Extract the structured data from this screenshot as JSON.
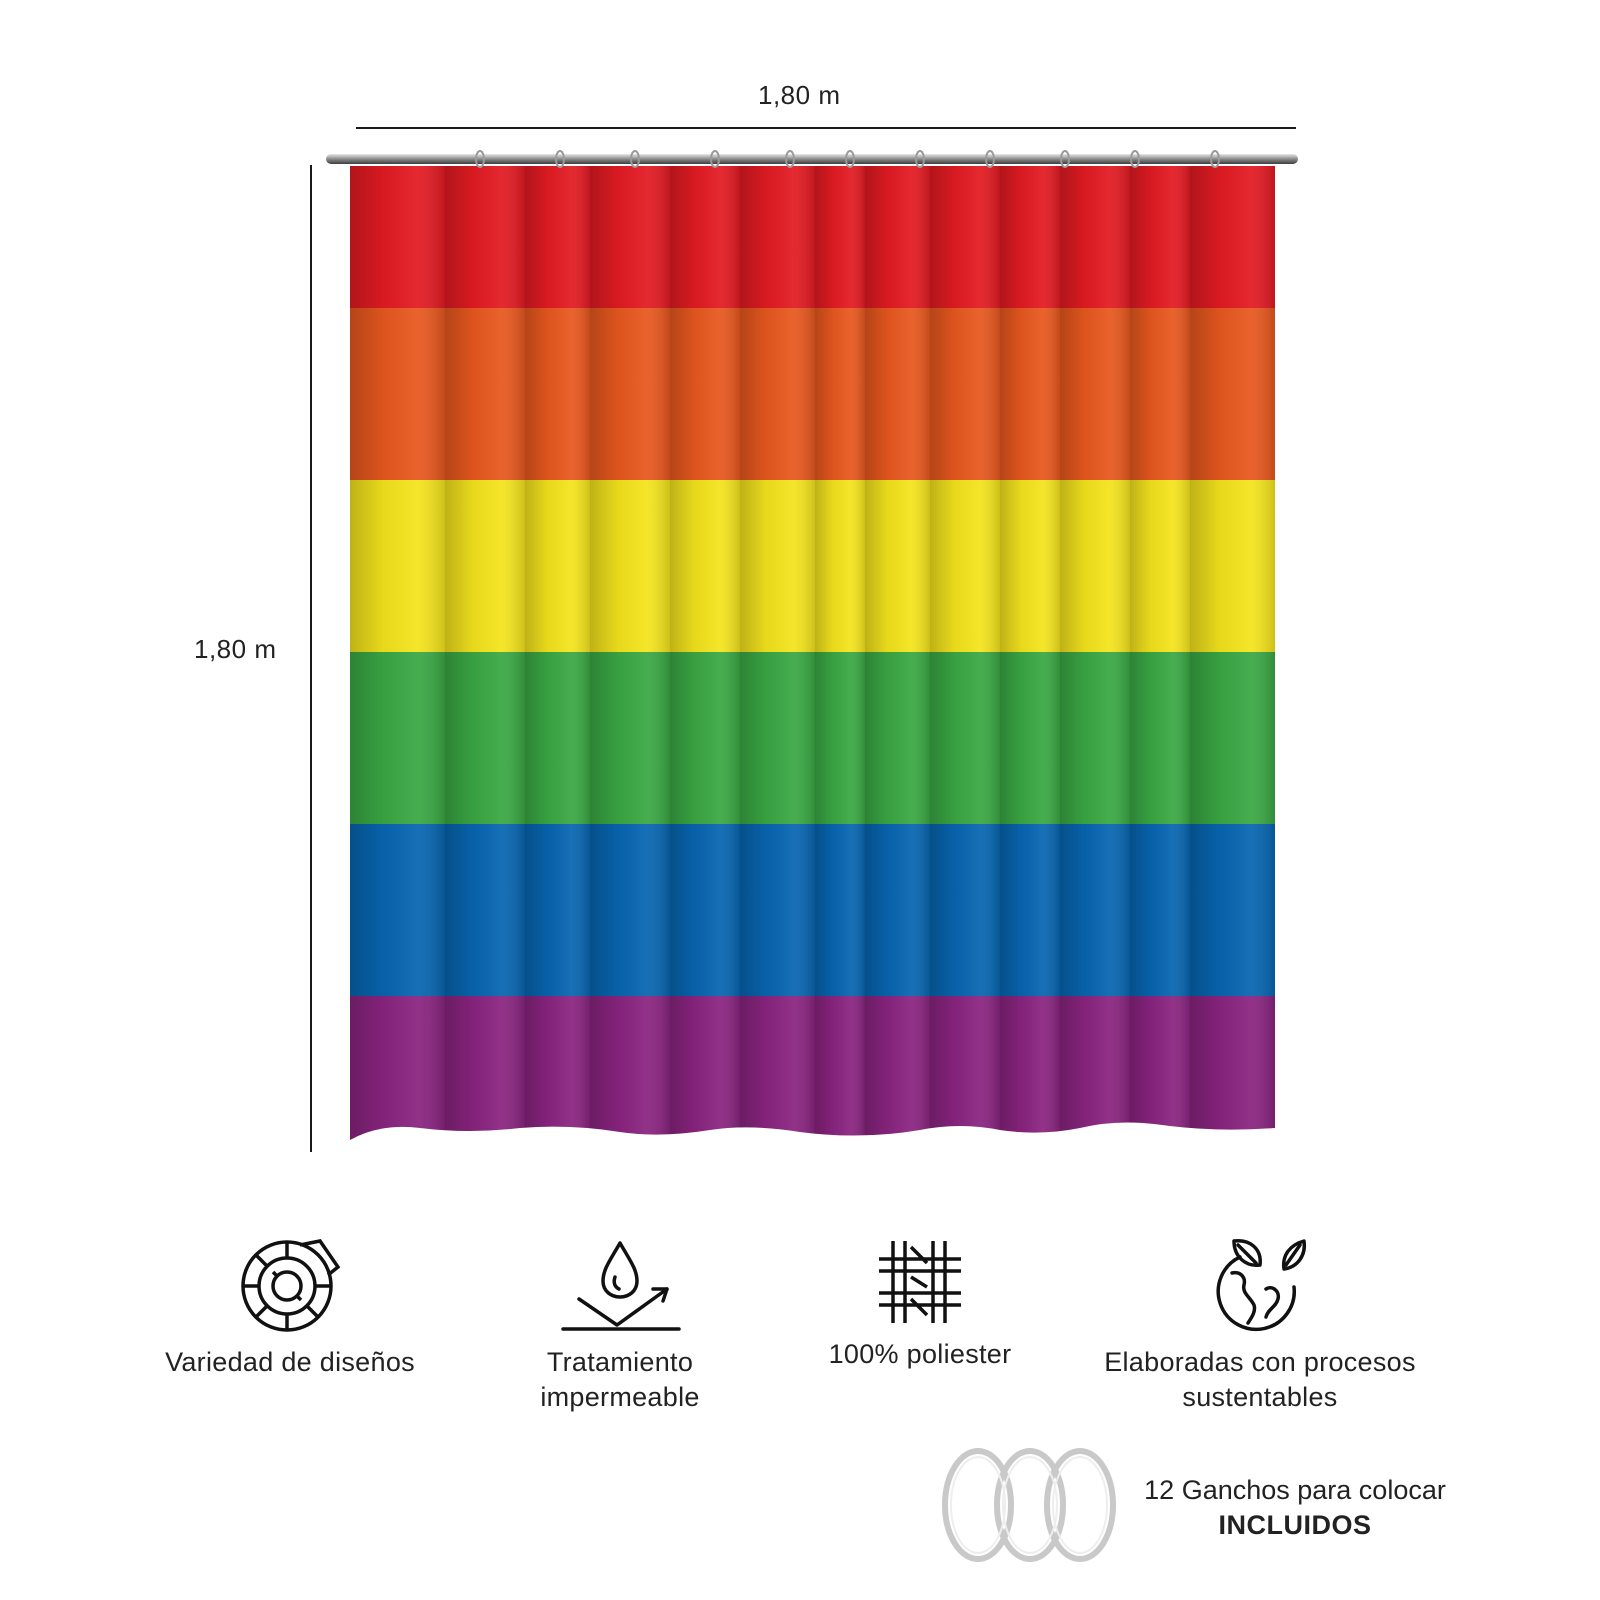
{
  "dimensions": {
    "width_label": "1,80 m",
    "height_label": "1,80 m"
  },
  "curtain": {
    "stripes": [
      {
        "color_name": "red",
        "color": "#e31b23"
      },
      {
        "color_name": "orange",
        "color": "#e8581f"
      },
      {
        "color_name": "yellow",
        "color": "#f4e41d"
      },
      {
        "color_name": "green",
        "color": "#3aa844"
      },
      {
        "color_name": "blue",
        "color": "#0866b1"
      },
      {
        "color_name": "purple",
        "color": "#8a2480"
      }
    ],
    "rod_color": "#9a9a9a"
  },
  "features": [
    {
      "icon": "pattern-wheel-icon",
      "lines": [
        "Variedad de diseños"
      ]
    },
    {
      "icon": "water-drop-icon",
      "lines": [
        "Tratamiento",
        "impermeable"
      ]
    },
    {
      "icon": "woven-fabric-icon",
      "lines": [
        "100% poliester"
      ]
    },
    {
      "icon": "eco-globe-icon",
      "lines": [
        "Elaboradas con procesos",
        "sustentables"
      ]
    }
  ],
  "hooks": {
    "icon": "curtain-rings-icon",
    "line1": "12 Ganchos para colocar",
    "line2": "INCLUIDOS"
  }
}
